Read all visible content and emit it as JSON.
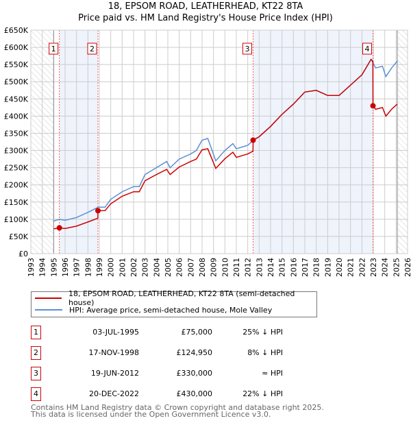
{
  "title": "18, EPSOM ROAD, LEATHERHEAD, KT22 8TA",
  "subtitle": "Price paid vs. HM Land Registry's House Price Index (HPI)",
  "chart_data": {
    "type": "line",
    "title": "18, EPSOM ROAD, LEATHERHEAD, KT22 8TA — Price paid vs. HM Land Registry's House Price Index (HPI)",
    "xlim": [
      1993,
      2026
    ],
    "ylim": [
      0,
      650000
    ],
    "x_ticks": [
      "1993",
      "1994",
      "1995",
      "1996",
      "1997",
      "1998",
      "1999",
      "2000",
      "2001",
      "2002",
      "2003",
      "2004",
      "2005",
      "2006",
      "2007",
      "2008",
      "2009",
      "2010",
      "2011",
      "2012",
      "2013",
      "2014",
      "2015",
      "2016",
      "2017",
      "2018",
      "2019",
      "2020",
      "2021",
      "2022",
      "2023",
      "2024",
      "2025",
      "2026"
    ],
    "y_ticks": [
      {
        "v": 0,
        "label": "£0"
      },
      {
        "v": 50000,
        "label": "£50K"
      },
      {
        "v": 100000,
        "label": "£100K"
      },
      {
        "v": 150000,
        "label": "£150K"
      },
      {
        "v": 200000,
        "label": "£200K"
      },
      {
        "v": 250000,
        "label": "£250K"
      },
      {
        "v": 300000,
        "label": "£300K"
      },
      {
        "v": 350000,
        "label": "£350K"
      },
      {
        "v": 400000,
        "label": "£400K"
      },
      {
        "v": 450000,
        "label": "£450K"
      },
      {
        "v": 500000,
        "label": "£500K"
      },
      {
        "v": 550000,
        "label": "£550K"
      },
      {
        "v": 600000,
        "label": "£600K"
      },
      {
        "v": 650000,
        "label": "£650K"
      }
    ],
    "grid": true,
    "data_range": [
      1995.0,
      2025.1
    ],
    "shaded_periods": [
      [
        1995.5,
        1998.88
      ],
      [
        2012.47,
        2022.97
      ]
    ],
    "series": [
      {
        "name": "18, EPSOM ROAD, LEATHERHEAD, KT22 8TA (semi-detached house)",
        "color": "#cc0000",
        "x": [
          1995,
          1995.5,
          1996,
          1997,
          1998,
          1998.87,
          1998.88,
          1999.5,
          2000,
          2001,
          2002,
          2002.5,
          2003,
          2004,
          2004.9,
          2005.2,
          2006,
          2007,
          2007.5,
          2008,
          2008.5,
          2009.2,
          2010,
          2010.7,
          2011,
          2011.5,
          2012,
          2012.46,
          2012.47,
          2013,
          2014,
          2015,
          2016,
          2017,
          2018,
          2019,
          2020,
          2021,
          2022,
          2022.8,
          2022.96,
          2022.97,
          2023.2,
          2023.8,
          2024.1,
          2024.6,
          2025.1
        ],
        "y": [
          72000,
          75000,
          73000,
          80000,
          92000,
          103000,
          124950,
          125000,
          145000,
          167000,
          180000,
          180000,
          212000,
          230000,
          245000,
          230000,
          252000,
          268000,
          275000,
          302000,
          305000,
          248000,
          276000,
          295000,
          280000,
          285000,
          290000,
          298000,
          330000,
          340000,
          370000,
          405000,
          435000,
          470000,
          475000,
          460000,
          460000,
          490000,
          520000,
          565000,
          560000,
          430000,
          420000,
          425000,
          400000,
          420000,
          435000
        ]
      },
      {
        "name": "HPI: Average price, semi-detached house, Mole Valley",
        "color": "#5b8fd4",
        "x": [
          1995,
          1995.5,
          1996,
          1997,
          1998,
          1998.9,
          1999.5,
          2000,
          2001,
          2002,
          2002.5,
          2003,
          2004,
          2004.9,
          2005.2,
          2006,
          2007,
          2007.5,
          2008,
          2008.5,
          2009.2,
          2010,
          2010.7,
          2011,
          2011.5,
          2012,
          2012.5,
          2013,
          2014,
          2015,
          2016,
          2017,
          2018,
          2019,
          2020,
          2021,
          2022,
          2022.8,
          2022.97,
          2023.2,
          2023.8,
          2024.1,
          2024.6,
          2025.1
        ],
        "y": [
          95000,
          100000,
          97000,
          105000,
          120000,
          135000,
          135000,
          158000,
          180000,
          195000,
          195000,
          230000,
          250000,
          268000,
          250000,
          275000,
          290000,
          300000,
          330000,
          335000,
          270000,
          300000,
          320000,
          305000,
          310000,
          315000,
          330000,
          340000,
          370000,
          405000,
          435000,
          470000,
          475000,
          460000,
          460000,
          490000,
          520000,
          565000,
          555000,
          540000,
          545000,
          515000,
          540000,
          560000
        ]
      }
    ],
    "sales": [
      {
        "id": "1",
        "x": 1995.5,
        "y": 75000
      },
      {
        "id": "2",
        "x": 1998.88,
        "y": 124950
      },
      {
        "id": "3",
        "x": 2012.47,
        "y": 330000
      },
      {
        "id": "4",
        "x": 2022.97,
        "y": 430000
      }
    ],
    "legend_placement": "below"
  },
  "legend": [
    {
      "label": "18, EPSOM ROAD, LEATHERHEAD, KT22 8TA (semi-detached house)",
      "color": "#cc0000"
    },
    {
      "label": "HPI: Average price, semi-detached house, Mole Valley",
      "color": "#5b8fd4"
    }
  ],
  "transactions": [
    {
      "num": "1",
      "date": "03-JUL-1995",
      "price": "£75,000",
      "hpi": "25% ↓ HPI"
    },
    {
      "num": "2",
      "date": "17-NOV-1998",
      "price": "£124,950",
      "hpi": "8% ↓ HPI"
    },
    {
      "num": "3",
      "date": "19-JUN-2012",
      "price": "£330,000",
      "hpi": "≈ HPI"
    },
    {
      "num": "4",
      "date": "20-DEC-2022",
      "price": "£430,000",
      "hpi": "22% ↓ HPI"
    }
  ],
  "footer": [
    "Contains HM Land Registry data © Crown copyright and database right 2025.",
    "This data is licensed under the Open Government Licence v3.0."
  ]
}
